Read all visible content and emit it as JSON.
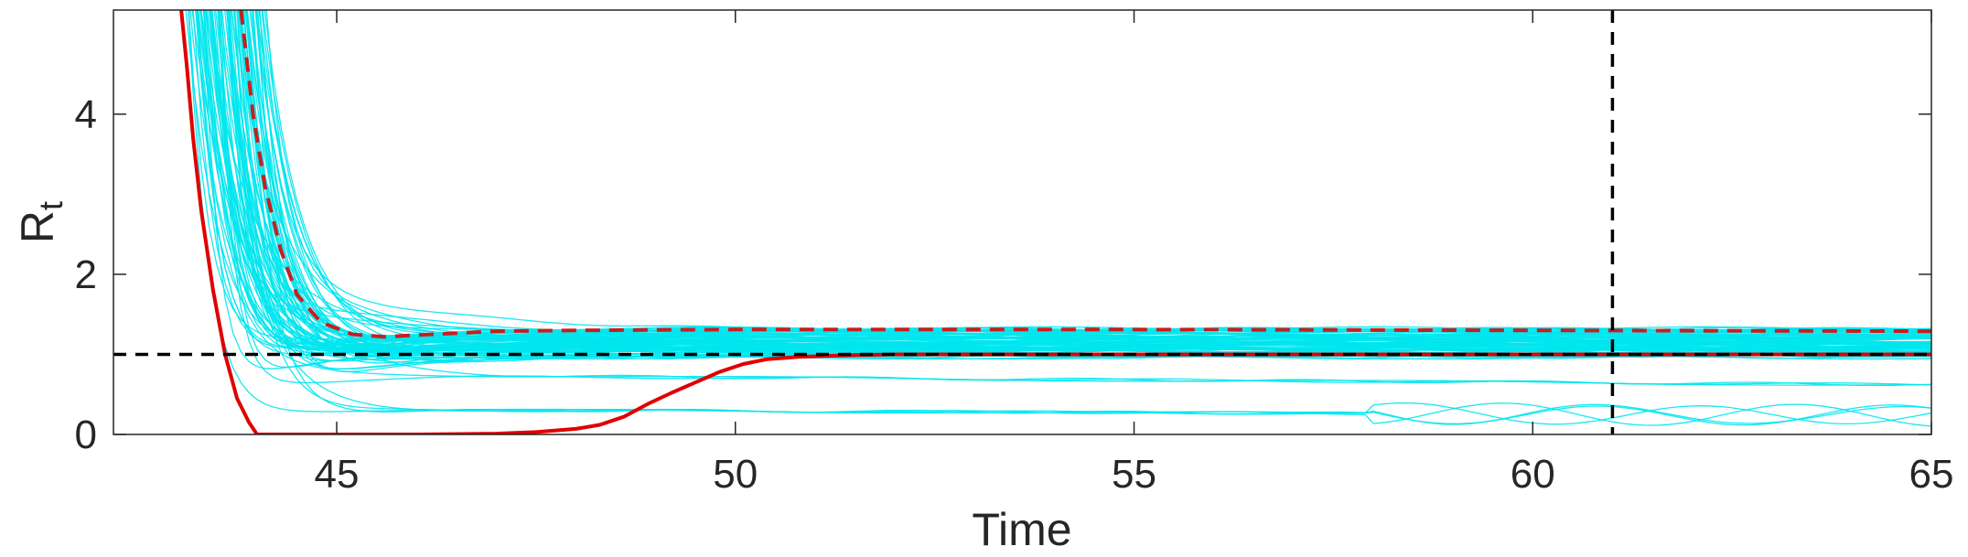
{
  "chart_data": {
    "type": "line",
    "xlabel": "Time",
    "ylabel": "R",
    "ylabel_subscript": "t",
    "xlim": [
      42.2,
      65
    ],
    "ylim": [
      0,
      5.3
    ],
    "xticks": [
      45,
      50,
      55,
      60,
      65
    ],
    "xtick_labels": [
      "45",
      "50",
      "55",
      "60",
      "65"
    ],
    "yticks": [
      0,
      2,
      4
    ],
    "ytick_labels": [
      "0",
      "2",
      "4"
    ],
    "grid": false,
    "reference_lines": [
      {
        "name": "threshold",
        "orientation": "horizontal",
        "value": 1,
        "style": "dashed",
        "color": "#000000"
      },
      {
        "name": "time-marker",
        "orientation": "vertical",
        "value": 61,
        "style": "dashed",
        "color": "#000000"
      }
    ],
    "series": [
      {
        "name": "true-rt",
        "style": "solid",
        "color": "#e00000",
        "x": [
          43.05,
          43.12,
          43.2,
          43.3,
          43.45,
          43.6,
          43.75,
          43.9,
          44.0,
          45,
          46,
          47,
          47.5,
          48,
          48.3,
          48.6,
          48.9,
          49.2,
          49.5,
          49.8,
          50.1,
          50.4,
          50.8,
          51.5,
          52,
          55,
          60,
          65
        ],
        "y": [
          5.3,
          4.6,
          3.7,
          2.8,
          1.8,
          1.0,
          0.45,
          0.15,
          0.0,
          0.0,
          0.0,
          0.01,
          0.03,
          0.07,
          0.12,
          0.22,
          0.38,
          0.52,
          0.65,
          0.78,
          0.88,
          0.94,
          0.97,
          0.99,
          1.0,
          1.0,
          1.0,
          1.0
        ]
      },
      {
        "name": "estimated-rt-mean",
        "style": "dashed",
        "color": "#c81e1e",
        "x": [
          43.8,
          43.95,
          44.1,
          44.3,
          44.5,
          44.8,
          45.2,
          45.6,
          46,
          47,
          48,
          50,
          55,
          60,
          65
        ],
        "y": [
          5.3,
          4.0,
          3.1,
          2.3,
          1.75,
          1.4,
          1.25,
          1.22,
          1.24,
          1.29,
          1.3,
          1.31,
          1.31,
          1.3,
          1.29
        ]
      }
    ],
    "ensemble": {
      "name": "realizations",
      "color": "#00e5ee",
      "count": 90,
      "range": [
        42.2,
        65
      ]
    }
  }
}
